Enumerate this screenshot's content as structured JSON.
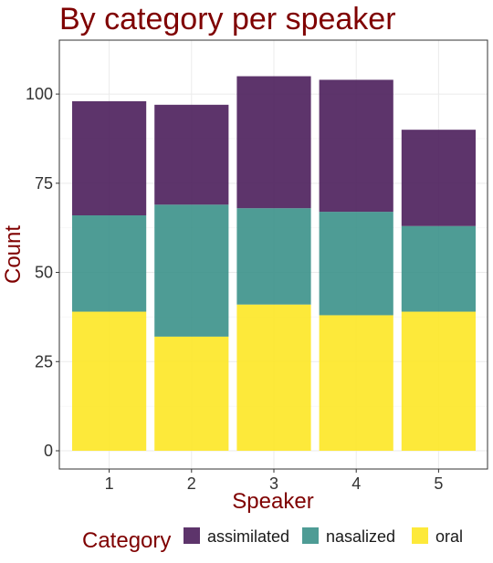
{
  "chart_data": {
    "type": "bar",
    "stacked": true,
    "title": "By category per speaker",
    "xlabel": "Speaker",
    "ylabel": "Count",
    "categories": [
      "1",
      "2",
      "3",
      "4",
      "5"
    ],
    "ylim": [
      0,
      110
    ],
    "yticks": [
      0,
      25,
      50,
      75,
      100
    ],
    "grid": true,
    "legend_position": "bottom",
    "legend_title": "Category",
    "series": [
      {
        "name": "oral",
        "color": "#fde725",
        "values": [
          39,
          32,
          41,
          38,
          39
        ]
      },
      {
        "name": "nasalized",
        "color": "#3b918a",
        "values": [
          27,
          37,
          27,
          29,
          24
        ]
      },
      {
        "name": "assimilated",
        "color": "#4b1e5b",
        "values": [
          32,
          28,
          37,
          37,
          27
        ]
      }
    ],
    "legend_order": [
      "assimilated",
      "nasalized",
      "oral"
    ]
  }
}
